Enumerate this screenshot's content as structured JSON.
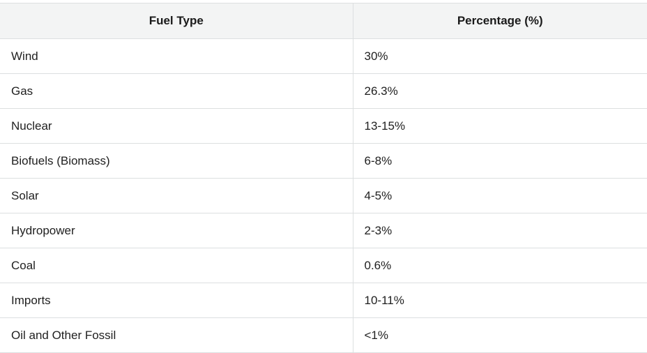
{
  "table": {
    "headers": [
      "Fuel Type",
      "Percentage (%)"
    ],
    "rows": [
      [
        "Wind",
        "30%"
      ],
      [
        "Gas",
        "26.3%"
      ],
      [
        "Nuclear",
        "13-15%"
      ],
      [
        "Biofuels (Biomass)",
        "6-8%"
      ],
      [
        "Solar",
        "4-5%"
      ],
      [
        "Hydropower",
        "2-3%"
      ],
      [
        "Coal",
        "0.6%"
      ],
      [
        "Imports",
        "10-11%"
      ],
      [
        "Oil and Other Fossil",
        "<1%"
      ]
    ]
  }
}
